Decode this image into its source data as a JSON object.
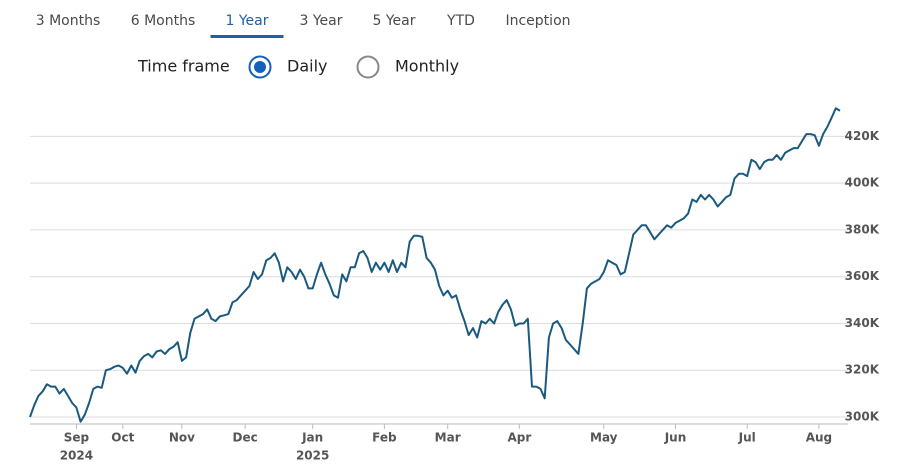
{
  "tabs": [
    "3 Months",
    "6 Months",
    "1 Year",
    "3 Year",
    "5 Year",
    "YTD",
    "Inception"
  ],
  "selected_tab": 2,
  "time_frame": {
    "label": "Time frame",
    "options": [
      "Daily",
      "Monthly"
    ],
    "selected": 0
  },
  "chart_data": {
    "type": "line",
    "color": "#1b5a7f",
    "grid": true,
    "ylim": [
      297000,
      433000
    ],
    "yticks": [
      {
        "value": 300000,
        "label": "300K"
      },
      {
        "value": 320000,
        "label": "320K"
      },
      {
        "value": 340000,
        "label": "340K"
      },
      {
        "value": 360000,
        "label": "360K"
      },
      {
        "value": 380000,
        "label": "380K"
      },
      {
        "value": 400000,
        "label": "400K"
      },
      {
        "value": 420000,
        "label": "420K"
      }
    ],
    "xlim": [
      0,
      192
    ],
    "xticks": [
      {
        "value": 11,
        "label": "Sep"
      },
      {
        "value": 22,
        "label": "Oct"
      },
      {
        "value": 36,
        "label": "Nov"
      },
      {
        "value": 51,
        "label": "Dec"
      },
      {
        "value": 67,
        "label": "Jan"
      },
      {
        "value": 84,
        "label": "Feb"
      },
      {
        "value": 99,
        "label": "Mar"
      },
      {
        "value": 116,
        "label": "Apr"
      },
      {
        "value": 136,
        "label": "May"
      },
      {
        "value": 153,
        "label": "Jun"
      },
      {
        "value": 170,
        "label": "Jul"
      },
      {
        "value": 187,
        "label": "Aug"
      }
    ],
    "year_labels": [
      {
        "value": 11,
        "label": "2024"
      },
      {
        "value": 67,
        "label": "2025"
      }
    ],
    "values": [
      300000,
      305000,
      309000,
      311000,
      314000,
      313000,
      313000,
      310000,
      312000,
      309000,
      306000,
      304000,
      298000,
      301000,
      306000,
      312000,
      313000,
      312500,
      320000,
      320500,
      321500,
      322000,
      321000,
      318500,
      322000,
      319000,
      324000,
      326000,
      327000,
      325500,
      328000,
      328500,
      327000,
      329000,
      330000,
      332000,
      324000,
      325500,
      336000,
      342000,
      343000,
      344000,
      346000,
      342000,
      341000,
      343000,
      343500,
      344000,
      349000,
      350000,
      352000,
      354000,
      356000,
      362000,
      359000,
      361000,
      367000,
      368000,
      370000,
      366000,
      358000,
      364000,
      362000,
      359000,
      363000,
      360000,
      355000,
      355000,
      361000,
      366000,
      361000,
      357000,
      352000,
      351000,
      361000,
      358000,
      364000,
      364000,
      370000,
      371000,
      368000,
      362000,
      366000,
      363000,
      366000,
      362000,
      367000,
      362000,
      366000,
      364000,
      375000,
      377500,
      377500,
      377000,
      368000,
      366000,
      363000,
      356000,
      352000,
      354000,
      351000,
      352000,
      346000,
      341000,
      335000,
      338000,
      334000,
      341000,
      340000,
      342000,
      340000,
      345000,
      348000,
      350000,
      346000,
      339000,
      340000,
      340000,
      342000,
      313000,
      313000,
      312000,
      308000,
      334000,
      340000,
      341000,
      338000,
      333000,
      331000,
      329000,
      327000,
      340000,
      355000,
      357000,
      358000,
      359000,
      362000,
      367000,
      366000,
      365000,
      361000,
      362000,
      370000,
      378000,
      380000,
      382000,
      382000,
      379000,
      376000,
      378000,
      380000,
      382000,
      381000,
      383000,
      384000,
      385000,
      387000,
      393000,
      392000,
      395000,
      393000,
      395000,
      393000,
      390000,
      392000,
      394000,
      395000,
      402000,
      404000,
      404000,
      403000,
      410000,
      409000,
      406000,
      409000,
      410000,
      410000,
      412000,
      410000,
      413000,
      414000,
      415000,
      415000,
      418000,
      421000,
      421000,
      420500,
      416000,
      421000,
      424000,
      428000,
      432000,
      431000
    ]
  }
}
